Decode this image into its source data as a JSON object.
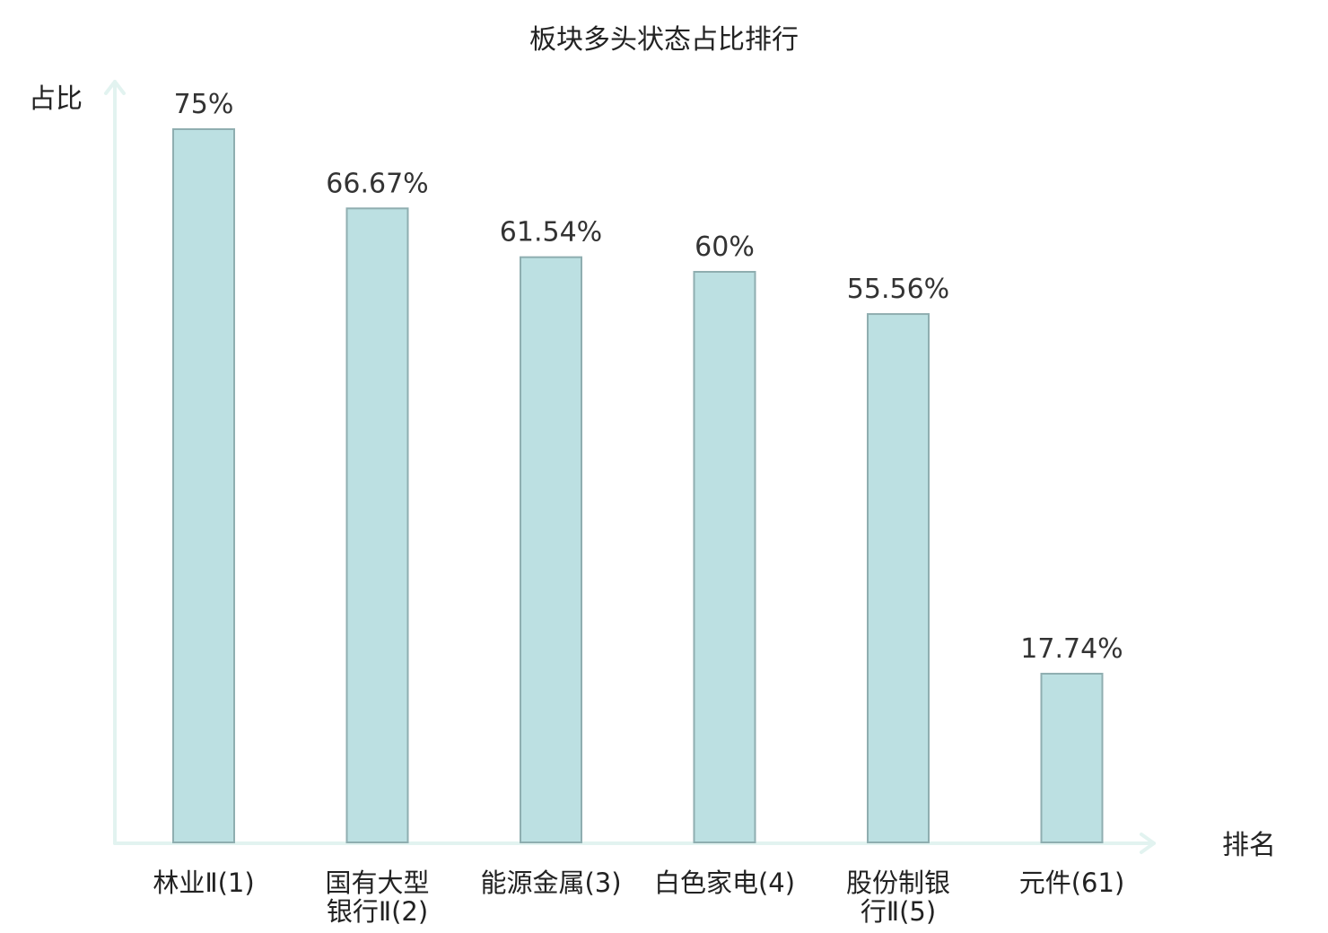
{
  "chart_data": {
    "type": "bar",
    "title": "板块多头状态占比排行",
    "ylabel": "占比",
    "xlabel": "排名",
    "categories": [
      [
        "林业Ⅱ(1)"
      ],
      [
        "国有大型",
        "银行Ⅱ(2)"
      ],
      [
        "能源金属(3)"
      ],
      [
        "白色家电(4)"
      ],
      [
        "股份制银",
        "行Ⅱ(5)"
      ],
      [
        "元件(61)"
      ]
    ],
    "values": [
      75,
      66.67,
      61.54,
      60,
      55.56,
      17.74
    ],
    "value_labels": [
      "75%",
      "66.67%",
      "61.54%",
      "60%",
      "55.56%",
      "17.74%"
    ],
    "highlight_index": 5,
    "ylim": [
      0,
      90
    ],
    "grid": false,
    "colors": {
      "bar_fill": "#bce0e2",
      "bar_stroke": "#8faeb0",
      "axis": "#e2f3f0",
      "text": "#222222",
      "highlight": "#e0161b"
    }
  }
}
